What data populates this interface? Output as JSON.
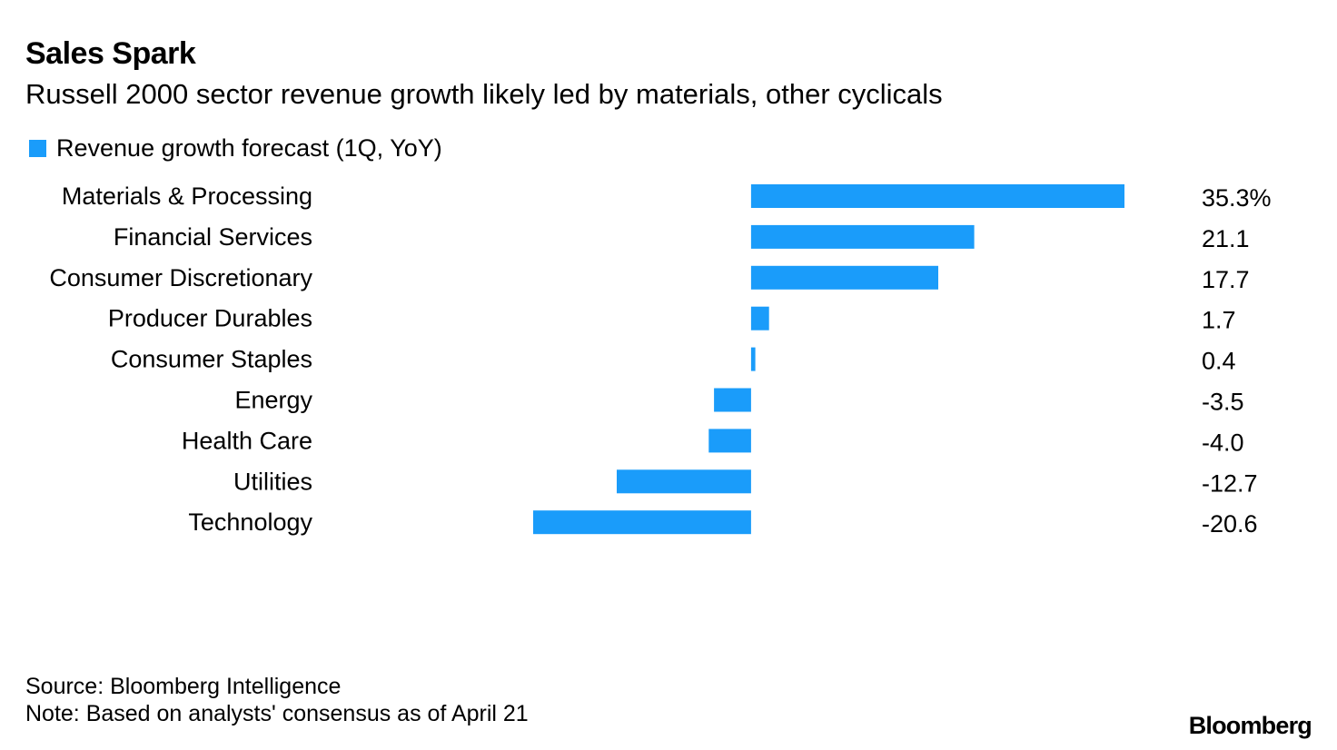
{
  "header": {
    "title": "Sales Spark",
    "subtitle": "Russell 2000 sector revenue growth likely led by materials, other cyclicals"
  },
  "legend": {
    "label": "Revenue growth forecast (1Q, YoY)",
    "color": "#1a9cfa"
  },
  "chart_data": {
    "type": "bar",
    "orientation": "horizontal",
    "title": "Sales Spark",
    "subtitle": "Russell 2000 sector revenue growth likely led by materials, other cyclicals",
    "xlabel": "",
    "ylabel": "",
    "grid": false,
    "legend_position": "top-left",
    "unit": "%",
    "xlim": [
      -20.6,
      35.3
    ],
    "categories": [
      "Materials & Processing",
      "Financial Services",
      "Consumer Discretionary",
      "Producer Durables",
      "Consumer Staples",
      "Energy",
      "Health Care",
      "Utilities",
      "Technology"
    ],
    "series": [
      {
        "name": "Revenue growth forecast (1Q, YoY)",
        "color": "#1a9cfa",
        "values": [
          35.3,
          21.1,
          17.7,
          1.7,
          0.4,
          -3.5,
          -4.0,
          -12.7,
          -20.6
        ]
      }
    ],
    "value_labels": [
      "35.3%",
      "21.1",
      "17.7",
      "1.7",
      "0.4",
      "-3.5",
      "-4.0",
      "-12.7",
      "-20.6"
    ]
  },
  "footer": {
    "source": "Source: Bloomberg Intelligence",
    "note": "Note: Based on analysts' consensus as of April 21",
    "brand": "Bloomberg"
  }
}
